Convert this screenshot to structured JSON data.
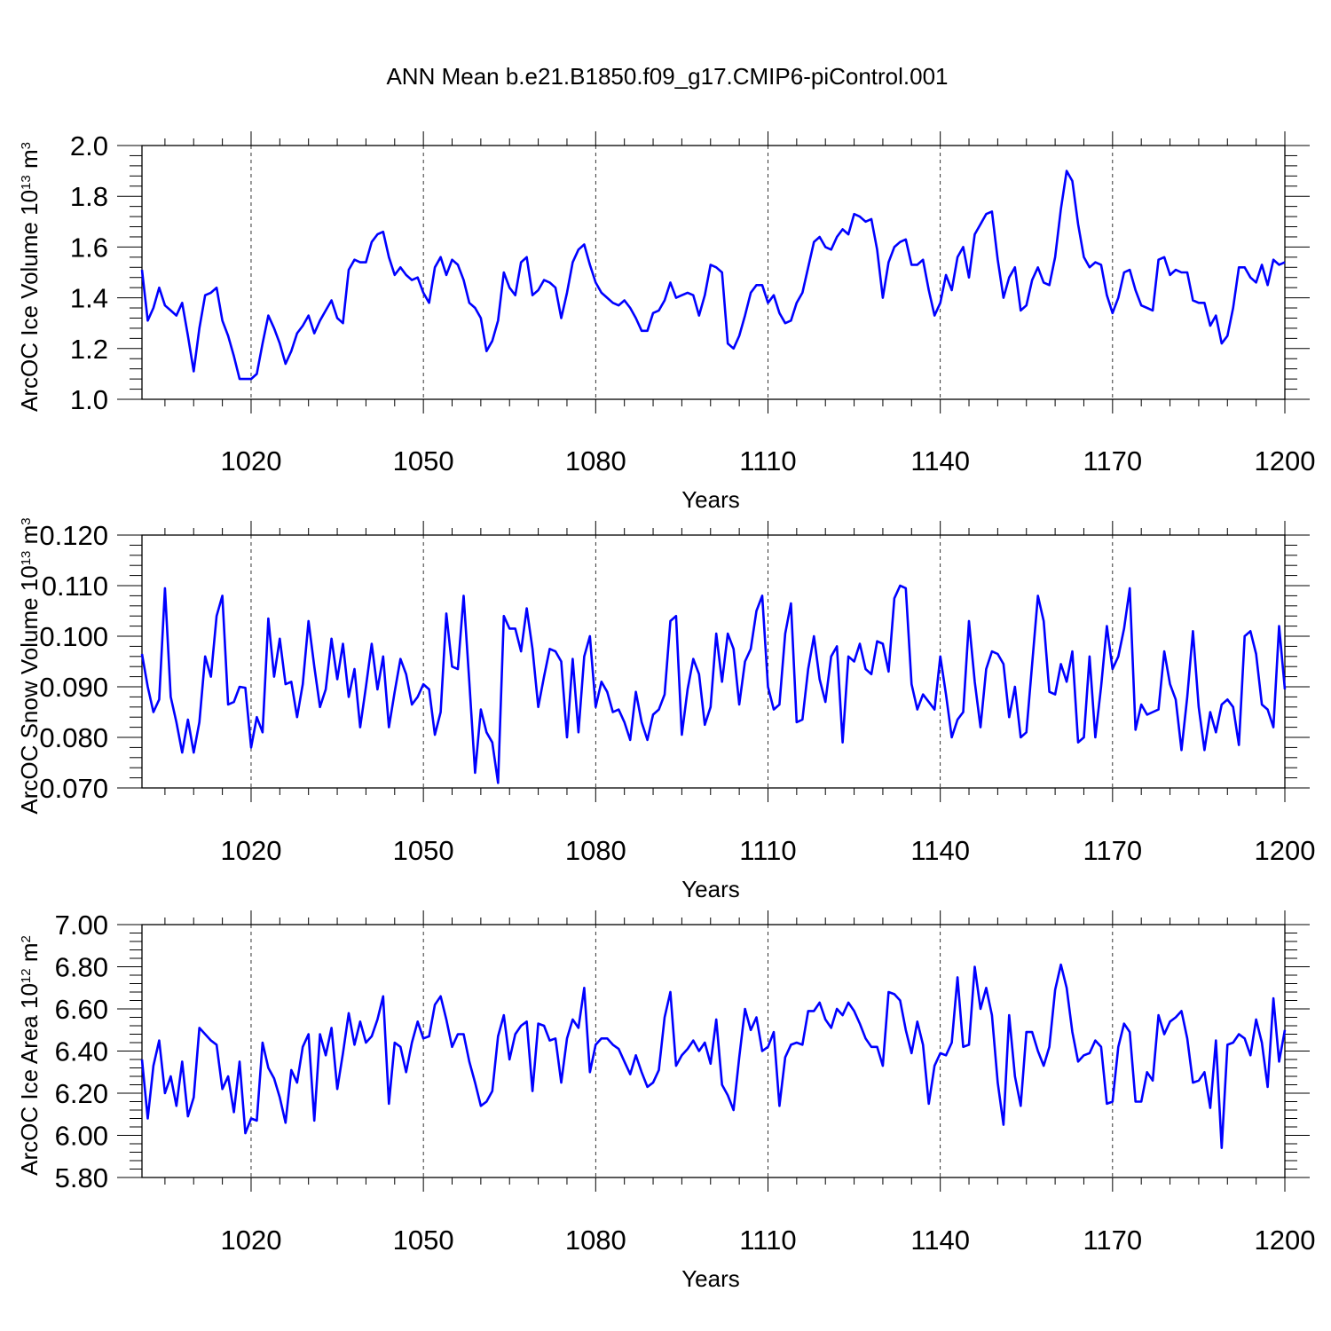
{
  "title": "ANN Mean b.e21.B1850.f09_g17.CMIP6-piControl.001",
  "chart_data": [
    {
      "type": "line",
      "title": "ANN Mean b.e21.B1850.f09_g17.CMIP6-piControl.001",
      "xlabel": "Years",
      "ylabel": {
        "text": "ArcOC Ice Volume 10",
        "exp": "13",
        "unit": " m",
        "unit_exp": "3"
      },
      "xlim": [
        1001,
        1200
      ],
      "ylim": [
        1.0,
        2.0
      ],
      "xticks": [
        1020,
        1050,
        1080,
        1110,
        1140,
        1170,
        1200
      ],
      "yticks": [
        1.0,
        1.2,
        1.4,
        1.6,
        1.8,
        2.0
      ],
      "ytick_labels": [
        "1.0",
        "1.2",
        "1.4",
        "1.6",
        "1.8",
        "2.0"
      ],
      "grid": "x-dashed",
      "series": [
        {
          "name": "ArcOC Ice Volume",
          "color": "#0000ff",
          "x_start": 1001,
          "values": [
            1.51,
            1.31,
            1.36,
            1.44,
            1.37,
            1.35,
            1.33,
            1.38,
            1.25,
            1.11,
            1.28,
            1.41,
            1.42,
            1.44,
            1.31,
            1.25,
            1.17,
            1.08,
            1.08,
            1.08,
            1.1,
            1.22,
            1.33,
            1.28,
            1.22,
            1.14,
            1.19,
            1.26,
            1.29,
            1.33,
            1.26,
            1.31,
            1.35,
            1.39,
            1.32,
            1.3,
            1.51,
            1.55,
            1.54,
            1.54,
            1.62,
            1.65,
            1.66,
            1.56,
            1.49,
            1.52,
            1.49,
            1.47,
            1.48,
            1.42,
            1.38,
            1.52,
            1.56,
            1.49,
            1.55,
            1.53,
            1.47,
            1.38,
            1.36,
            1.32,
            1.19,
            1.23,
            1.31,
            1.5,
            1.44,
            1.41,
            1.54,
            1.56,
            1.41,
            1.43,
            1.47,
            1.46,
            1.44,
            1.32,
            1.42,
            1.54,
            1.59,
            1.61,
            1.53,
            1.46,
            1.42,
            1.4,
            1.38,
            1.37,
            1.39,
            1.36,
            1.32,
            1.27,
            1.27,
            1.34,
            1.35,
            1.39,
            1.46,
            1.4,
            1.41,
            1.42,
            1.41,
            1.33,
            1.41,
            1.53,
            1.52,
            1.5,
            1.22,
            1.2,
            1.25,
            1.33,
            1.42,
            1.45,
            1.45,
            1.38,
            1.41,
            1.34,
            1.3,
            1.31,
            1.38,
            1.42,
            1.52,
            1.62,
            1.64,
            1.6,
            1.59,
            1.64,
            1.67,
            1.65,
            1.73,
            1.72,
            1.7,
            1.71,
            1.59,
            1.4,
            1.54,
            1.6,
            1.62,
            1.63,
            1.53,
            1.53,
            1.55,
            1.43,
            1.33,
            1.38,
            1.49,
            1.43,
            1.56,
            1.6,
            1.48,
            1.65,
            1.69,
            1.73,
            1.74,
            1.55,
            1.4,
            1.48,
            1.52,
            1.35,
            1.37,
            1.47,
            1.52,
            1.46,
            1.45,
            1.56,
            1.75,
            1.9,
            1.86,
            1.69,
            1.56,
            1.52,
            1.54,
            1.53,
            1.41,
            1.34,
            1.4,
            1.5,
            1.51,
            1.43,
            1.37,
            1.36,
            1.35,
            1.55,
            1.56,
            1.49,
            1.51,
            1.5,
            1.5,
            1.39,
            1.38,
            1.38,
            1.29,
            1.33,
            1.22,
            1.25,
            1.36,
            1.52,
            1.52,
            1.48,
            1.46,
            1.53,
            1.45,
            1.55,
            1.53,
            1.54
          ]
        }
      ]
    },
    {
      "type": "line",
      "xlabel": "Years",
      "ylabel": {
        "text": "ArcOC Snow Volume 10",
        "exp": "13",
        "unit": " m",
        "unit_exp": "3"
      },
      "xlim": [
        1001,
        1200
      ],
      "ylim": [
        0.07,
        0.12
      ],
      "xticks": [
        1020,
        1050,
        1080,
        1110,
        1140,
        1170,
        1200
      ],
      "yticks": [
        0.07,
        0.08,
        0.09,
        0.1,
        0.11,
        0.12
      ],
      "ytick_labels": [
        "0.070",
        "0.080",
        "0.090",
        "0.100",
        "0.110",
        "0.120"
      ],
      "grid": "x-dashed",
      "series": [
        {
          "name": "ArcOC Snow Volume",
          "color": "#0000ff",
          "x_start": 1001,
          "values": [
            0.0965,
            0.09,
            0.085,
            0.0875,
            0.1095,
            0.088,
            0.083,
            0.077,
            0.0835,
            0.077,
            0.083,
            0.096,
            0.092,
            0.104,
            0.108,
            0.0865,
            0.087,
            0.09,
            0.0898,
            0.078,
            0.084,
            0.081,
            0.1035,
            0.092,
            0.0995,
            0.0905,
            0.091,
            0.084,
            0.0905,
            0.103,
            0.094,
            0.086,
            0.0895,
            0.0995,
            0.0915,
            0.0985,
            0.088,
            0.0935,
            0.082,
            0.09,
            0.0985,
            0.0895,
            0.096,
            0.082,
            0.089,
            0.0955,
            0.0925,
            0.0865,
            0.088,
            0.0905,
            0.0895,
            0.0805,
            0.085,
            0.1045,
            0.094,
            0.0935,
            0.108,
            0.091,
            0.073,
            0.0855,
            0.081,
            0.079,
            0.071,
            0.104,
            0.1015,
            0.1015,
            0.097,
            0.1055,
            0.0975,
            0.086,
            0.092,
            0.0975,
            0.097,
            0.095,
            0.08,
            0.0955,
            0.081,
            0.096,
            0.1,
            0.086,
            0.091,
            0.089,
            0.085,
            0.0855,
            0.083,
            0.0795,
            0.089,
            0.083,
            0.0795,
            0.0845,
            0.0855,
            0.0885,
            0.103,
            0.104,
            0.0805,
            0.0895,
            0.0955,
            0.0925,
            0.0825,
            0.086,
            0.1005,
            0.091,
            0.1005,
            0.0975,
            0.0865,
            0.095,
            0.0975,
            0.105,
            0.108,
            0.09,
            0.0855,
            0.0865,
            0.1005,
            0.1065,
            0.083,
            0.0835,
            0.0935,
            0.1,
            0.0915,
            0.087,
            0.096,
            0.098,
            0.079,
            0.096,
            0.095,
            0.0985,
            0.0935,
            0.0925,
            0.099,
            0.0985,
            0.093,
            0.1075,
            0.11,
            0.1095,
            0.0905,
            0.0855,
            0.0885,
            0.087,
            0.0855,
            0.096,
            0.0885,
            0.08,
            0.0835,
            0.085,
            0.103,
            0.091,
            0.082,
            0.0935,
            0.097,
            0.0965,
            0.0945,
            0.084,
            0.09,
            0.08,
            0.081,
            0.0945,
            0.108,
            0.103,
            0.089,
            0.0885,
            0.0945,
            0.091,
            0.097,
            0.079,
            0.08,
            0.096,
            0.08,
            0.09,
            0.102,
            0.0935,
            0.096,
            0.1015,
            0.1095,
            0.0815,
            0.0865,
            0.0845,
            0.085,
            0.0855,
            0.097,
            0.0905,
            0.0875,
            0.0775,
            0.088,
            0.101,
            0.086,
            0.0775,
            0.085,
            0.081,
            0.0865,
            0.0875,
            0.086,
            0.0785,
            0.1,
            0.101,
            0.0965,
            0.0865,
            0.0855,
            0.082,
            0.102,
            0.0895
          ]
        }
      ]
    },
    {
      "type": "line",
      "xlabel": "Years",
      "ylabel": {
        "text": "ArcOC Ice Area 10",
        "exp": "12",
        "unit": " m",
        "unit_exp": "2"
      },
      "xlim": [
        1001,
        1200
      ],
      "ylim": [
        5.8,
        7.0
      ],
      "xticks": [
        1020,
        1050,
        1080,
        1110,
        1140,
        1170,
        1200
      ],
      "yticks": [
        5.8,
        6.0,
        6.2,
        6.4,
        6.6,
        6.8,
        7.0
      ],
      "ytick_labels": [
        "5.80",
        "6.00",
        "6.20",
        "6.40",
        "6.60",
        "6.80",
        "7.00"
      ],
      "grid": "x-dashed",
      "series": [
        {
          "name": "ArcOC Ice Area",
          "color": "#0000ff",
          "x_start": 1001,
          "values": [
            6.36,
            6.08,
            6.33,
            6.45,
            6.2,
            6.28,
            6.14,
            6.35,
            6.09,
            6.18,
            6.51,
            6.48,
            6.45,
            6.43,
            6.22,
            6.28,
            6.11,
            6.35,
            6.01,
            6.08,
            6.07,
            6.44,
            6.32,
            6.27,
            6.18,
            6.06,
            6.31,
            6.25,
            6.42,
            6.48,
            6.07,
            6.48,
            6.38,
            6.51,
            6.22,
            6.39,
            6.58,
            6.43,
            6.54,
            6.44,
            6.47,
            6.55,
            6.66,
            6.15,
            6.44,
            6.42,
            6.3,
            6.44,
            6.54,
            6.46,
            6.47,
            6.62,
            6.66,
            6.55,
            6.42,
            6.48,
            6.48,
            6.35,
            6.25,
            6.14,
            6.16,
            6.21,
            6.47,
            6.57,
            6.36,
            6.48,
            6.52,
            6.54,
            6.21,
            6.53,
            6.52,
            6.45,
            6.46,
            6.25,
            6.46,
            6.55,
            6.51,
            6.7,
            6.3,
            6.43,
            6.46,
            6.46,
            6.43,
            6.41,
            6.35,
            6.29,
            6.38,
            6.3,
            6.23,
            6.25,
            6.31,
            6.56,
            6.68,
            6.33,
            6.38,
            6.41,
            6.45,
            6.4,
            6.44,
            6.34,
            6.55,
            6.24,
            6.19,
            6.12,
            6.37,
            6.6,
            6.5,
            6.56,
            6.4,
            6.42,
            6.49,
            6.14,
            6.37,
            6.43,
            6.44,
            6.43,
            6.59,
            6.59,
            6.63,
            6.55,
            6.51,
            6.6,
            6.57,
            6.63,
            6.59,
            6.53,
            6.46,
            6.42,
            6.42,
            6.33,
            6.68,
            6.67,
            6.64,
            6.5,
            6.39,
            6.54,
            6.43,
            6.15,
            6.33,
            6.39,
            6.38,
            6.44,
            6.75,
            6.42,
            6.43,
            6.8,
            6.6,
            6.7,
            6.57,
            6.25,
            6.05,
            6.57,
            6.28,
            6.14,
            6.49,
            6.49,
            6.4,
            6.33,
            6.42,
            6.69,
            6.81,
            6.7,
            6.49,
            6.35,
            6.38,
            6.39,
            6.45,
            6.42,
            6.15,
            6.16,
            6.42,
            6.53,
            6.49,
            6.16,
            6.16,
            6.3,
            6.26,
            6.57,
            6.48,
            6.54,
            6.56,
            6.59,
            6.46,
            6.25,
            6.26,
            6.3,
            6.13,
            6.45,
            5.94,
            6.43,
            6.44,
            6.48,
            6.46,
            6.38,
            6.55,
            6.44,
            6.23,
            6.65,
            6.35,
            6.5
          ]
        }
      ]
    }
  ]
}
